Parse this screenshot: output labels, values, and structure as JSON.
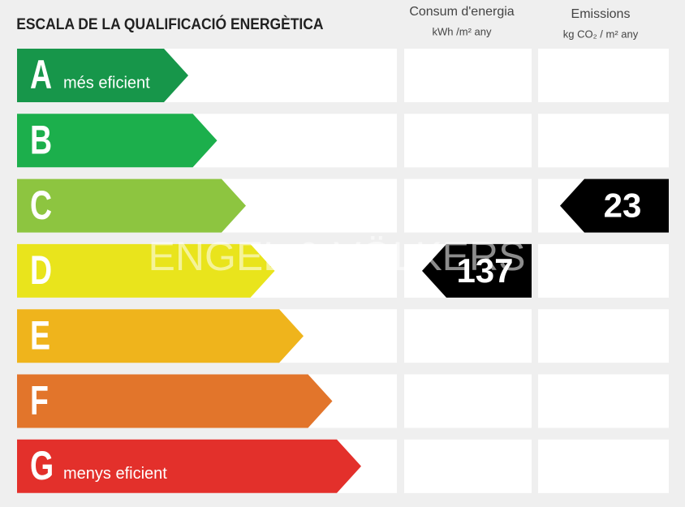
{
  "header": {
    "title": "ESCALA DE LA QUALIFICACIÓ ENERGÈTICA",
    "consumption": {
      "title": "Consum d'energia",
      "unit": "kWh /m² any"
    },
    "emissions": {
      "title": "Emissions",
      "unit": "kg CO₂ / m² any"
    }
  },
  "ratings": [
    {
      "letter": "A",
      "label": "més eficient",
      "color": "#17964a"
    },
    {
      "letter": "B",
      "color": "#1caf4c"
    },
    {
      "letter": "C",
      "color": "#8dc540"
    },
    {
      "letter": "D",
      "color": "#e9e41c"
    },
    {
      "letter": "E",
      "color": "#efb41c"
    },
    {
      "letter": "F",
      "color": "#e2752b"
    },
    {
      "letter": "G",
      "label": "menys eficient",
      "color": "#e3302b"
    }
  ],
  "consumption": {
    "value": 137,
    "rating": "D"
  },
  "emissions": {
    "value": 23,
    "rating": "C"
  },
  "watermark": "ENGEL & VÖLKERS"
}
